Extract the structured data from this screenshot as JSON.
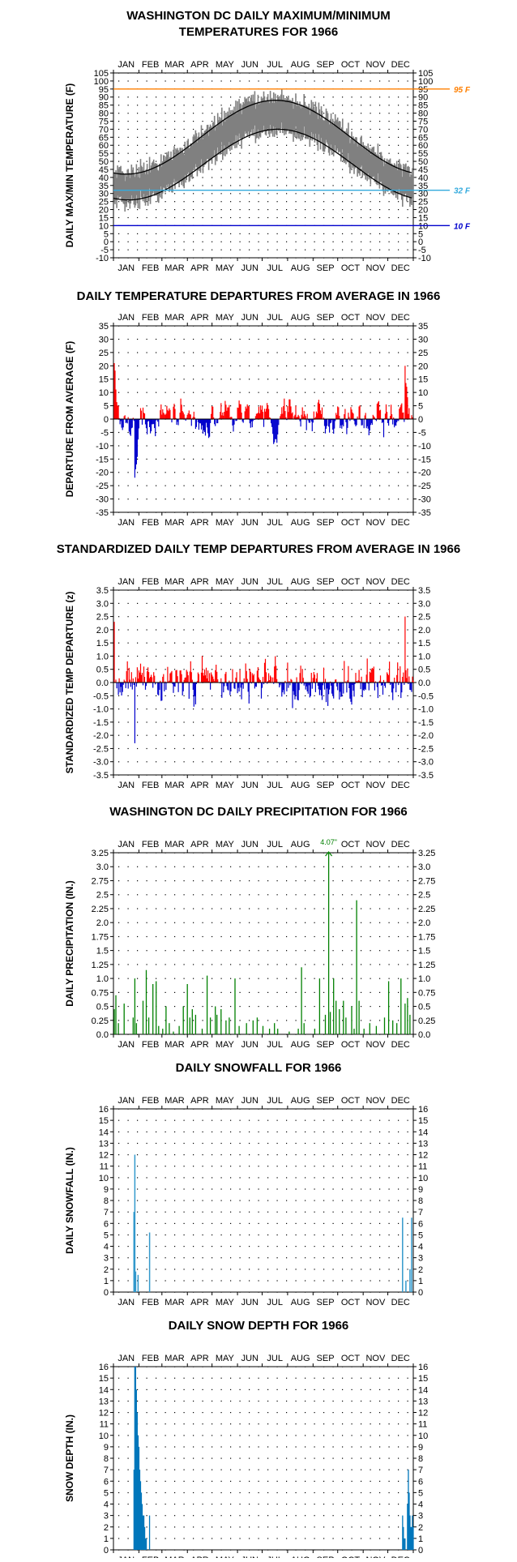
{
  "months": [
    "JAN",
    "FEB",
    "MAR",
    "APR",
    "MAY",
    "JUN",
    "JUL",
    "AUG",
    "SEP",
    "OCT",
    "NOV",
    "DEC"
  ],
  "colors": {
    "red": "#ff0000",
    "blue": "#0000cc",
    "gray": "#808080",
    "green": "#008000",
    "snow": "#3399cc",
    "depth": "#0077bb",
    "ref95": "#ff7f00",
    "ref32": "#33aadd",
    "ref10": "#0000cc"
  },
  "charts": [
    {
      "id": "temps",
      "type": "line",
      "title": [
        "WASHINGTON DC DAILY MAXIMUM/MINIMUM",
        "TEMPERATURES FOR 1966"
      ],
      "ylabel": "DAILY MAX/MIN TEMPERATURE (F)",
      "ylim": [
        -10,
        105
      ],
      "yticks": [
        -10,
        -5,
        0,
        5,
        10,
        15,
        20,
        25,
        30,
        35,
        40,
        45,
        50,
        55,
        60,
        65,
        70,
        75,
        80,
        85,
        90,
        95,
        100,
        105
      ],
      "ref_lines": [
        {
          "value": 95,
          "label": "95 F",
          "color": "#ff7f00"
        },
        {
          "value": 32,
          "label": "32 F",
          "color": "#33aadd"
        },
        {
          "value": 10,
          "label": "10 F",
          "color": "#0000cc"
        }
      ],
      "normal_high": {
        "jan_min": 42,
        "jul_max": 88
      },
      "normal_low": {
        "jan_min": 26,
        "jul_max": 70
      },
      "observed": {
        "max_range": [
          30,
          100
        ],
        "min_range": [
          10,
          75
        ]
      }
    },
    {
      "id": "departures",
      "type": "bar",
      "title": [
        "DAILY TEMPERATURE DEPARTURES FROM AVERAGE IN 1966"
      ],
      "ylabel": "DEPARTURE FROM AVERAGE (F)",
      "ylim": [
        -35,
        35
      ],
      "yticks": [
        -35,
        -30,
        -25,
        -20,
        -15,
        -10,
        -5,
        0,
        5,
        10,
        15,
        20,
        25,
        30,
        35
      ],
      "extremes": {
        "max": 21,
        "min": -22
      }
    },
    {
      "id": "standardized",
      "type": "bar",
      "title": [
        "STANDARDIZED DAILY TEMP DEPARTURES FROM AVERAGE IN 1966"
      ],
      "ylabel": "STANDARDIZED TEMP DEPARTURE (z)",
      "ylim": [
        -3.5,
        3.5
      ],
      "yticks": [
        -3.5,
        -3.0,
        -2.5,
        -2.0,
        -1.5,
        -1.0,
        -0.5,
        0.0,
        0.5,
        1.0,
        1.5,
        2.0,
        2.5,
        3.0,
        3.5
      ],
      "extremes": {
        "max": 2.5,
        "min": -2.3
      }
    },
    {
      "id": "precip",
      "type": "bar",
      "title": [
        "WASHINGTON DC DAILY PRECIPITATION FOR 1966"
      ],
      "ylabel": "DAILY PRECIPITATION (IN.)",
      "ylim": [
        0,
        3.25
      ],
      "yticks": [
        0.0,
        0.25,
        0.5,
        0.75,
        1.0,
        1.25,
        1.5,
        1.75,
        2.0,
        2.25,
        2.5,
        2.75,
        3.0,
        3.25
      ],
      "hide_top_month": "SEP",
      "annotation": {
        "label": "4.07\"",
        "day": 262,
        "value": 4.07
      },
      "days": [
        [
          1,
          0.45
        ],
        [
          3,
          0.7
        ],
        [
          6,
          0.2
        ],
        [
          13,
          0.55
        ],
        [
          24,
          0.3
        ],
        [
          26,
          1.0
        ],
        [
          28,
          0.2
        ],
        [
          36,
          0.6
        ],
        [
          40,
          1.15
        ],
        [
          43,
          0.3
        ],
        [
          48,
          0.9
        ],
        [
          52,
          0.95
        ],
        [
          55,
          0.15
        ],
        [
          60,
          0.1
        ],
        [
          64,
          0.5
        ],
        [
          68,
          0.2
        ],
        [
          73,
          0.05
        ],
        [
          80,
          0.15
        ],
        [
          85,
          0.5
        ],
        [
          90,
          0.9
        ],
        [
          93,
          0.3
        ],
        [
          96,
          0.45
        ],
        [
          100,
          0.35
        ],
        [
          108,
          0.1
        ],
        [
          114,
          1.05
        ],
        [
          118,
          0.3
        ],
        [
          124,
          0.5
        ],
        [
          126,
          0.35
        ],
        [
          131,
          0.45
        ],
        [
          137,
          0.25
        ],
        [
          141,
          0.3
        ],
        [
          148,
          1.0
        ],
        [
          153,
          0.15
        ],
        [
          162,
          0.2
        ],
        [
          170,
          0.25
        ],
        [
          175,
          0.3
        ],
        [
          182,
          0.15
        ],
        [
          190,
          0.1
        ],
        [
          196,
          0.2
        ],
        [
          200,
          0.1
        ],
        [
          214,
          0.05
        ],
        [
          225,
          0.1
        ],
        [
          229,
          1.2
        ],
        [
          232,
          0.2
        ],
        [
          245,
          0.1
        ],
        [
          251,
          1.0
        ],
        [
          258,
          0.35
        ],
        [
          262,
          4.07
        ],
        [
          264,
          0.4
        ],
        [
          268,
          1.0
        ],
        [
          271,
          0.6
        ],
        [
          275,
          0.45
        ],
        [
          280,
          0.6
        ],
        [
          283,
          0.3
        ],
        [
          290,
          0.5
        ],
        [
          293,
          0.1
        ],
        [
          296,
          2.4
        ],
        [
          299,
          0.6
        ],
        [
          305,
          0.1
        ],
        [
          312,
          0.2
        ],
        [
          320,
          0.15
        ],
        [
          330,
          0.3
        ],
        [
          335,
          0.95
        ],
        [
          340,
          0.25
        ],
        [
          345,
          0.2
        ],
        [
          350,
          1.0
        ],
        [
          355,
          0.55
        ],
        [
          358,
          0.65
        ],
        [
          361,
          0.35
        ]
      ]
    },
    {
      "id": "snowfall",
      "type": "bar",
      "title": [
        "DAILY SNOWFALL FOR 1966"
      ],
      "ylabel": "DAILY SNOWFALL (IN.)",
      "ylim": [
        0,
        16
      ],
      "yticks": [
        0,
        1,
        2,
        3,
        4,
        5,
        6,
        7,
        8,
        9,
        10,
        11,
        12,
        13,
        14,
        15,
        16
      ],
      "days": [
        [
          25,
          7.0
        ],
        [
          26,
          12.0
        ],
        [
          27,
          1.8
        ],
        [
          30,
          1.5
        ],
        [
          44,
          5.2
        ],
        [
          352,
          6.5
        ],
        [
          356,
          1.0
        ],
        [
          361,
          2.0
        ],
        [
          363,
          6.5
        ]
      ]
    },
    {
      "id": "snowdepth",
      "type": "area",
      "title": [
        "DAILY SNOW DEPTH FOR 1966"
      ],
      "ylabel": "SNOW DEPTH (IN.)",
      "ylim": [
        0,
        16
      ],
      "yticks": [
        0,
        1,
        2,
        3,
        4,
        5,
        6,
        7,
        8,
        9,
        10,
        11,
        12,
        13,
        14,
        15,
        16
      ],
      "days": [
        [
          24,
          0
        ],
        [
          25,
          7
        ],
        [
          26,
          16
        ],
        [
          27,
          16
        ],
        [
          28,
          14
        ],
        [
          29,
          12
        ],
        [
          30,
          10
        ],
        [
          31,
          9
        ],
        [
          32,
          7
        ],
        [
          33,
          6
        ],
        [
          34,
          5
        ],
        [
          35,
          4
        ],
        [
          36,
          3
        ],
        [
          37,
          3
        ],
        [
          38,
          2
        ],
        [
          39,
          1
        ],
        [
          40,
          1
        ],
        [
          44,
          3
        ],
        [
          45,
          0
        ],
        [
          352,
          3
        ],
        [
          353,
          2
        ],
        [
          354,
          1
        ],
        [
          355,
          1
        ],
        [
          358,
          4
        ],
        [
          359,
          7
        ],
        [
          360,
          5
        ],
        [
          361,
          3
        ],
        [
          362,
          2
        ],
        [
          363,
          2
        ],
        [
          364,
          3
        ],
        [
          365,
          2
        ]
      ]
    }
  ]
}
